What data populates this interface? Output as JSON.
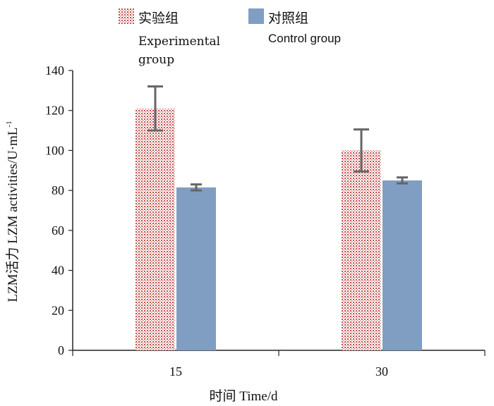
{
  "chart_data": {
    "type": "bar",
    "title": "",
    "xlabel": "时间 Time/d",
    "ylabel_main": "LZM活力 LZM activities/U·mL",
    "ylabel_sup": "-1",
    "categories": [
      "15",
      "30"
    ],
    "ylim": [
      0,
      140
    ],
    "yticks": [
      0,
      20,
      40,
      60,
      80,
      100,
      120,
      140
    ],
    "grid": false,
    "legend_position": "top",
    "series": [
      {
        "name_cn": "实验组",
        "name_en_1": "Experimental",
        "name_en_2": "group",
        "values": [
          121,
          100
        ],
        "errors": [
          11,
          10.5
        ],
        "color": "#c0504d",
        "pattern": "dotted"
      },
      {
        "name_cn": "对照组",
        "name_en": "Control group",
        "values": [
          81.5,
          85
        ],
        "errors": [
          1.5,
          1.5
        ],
        "color": "#809ec2",
        "pattern": "solid"
      }
    ]
  }
}
